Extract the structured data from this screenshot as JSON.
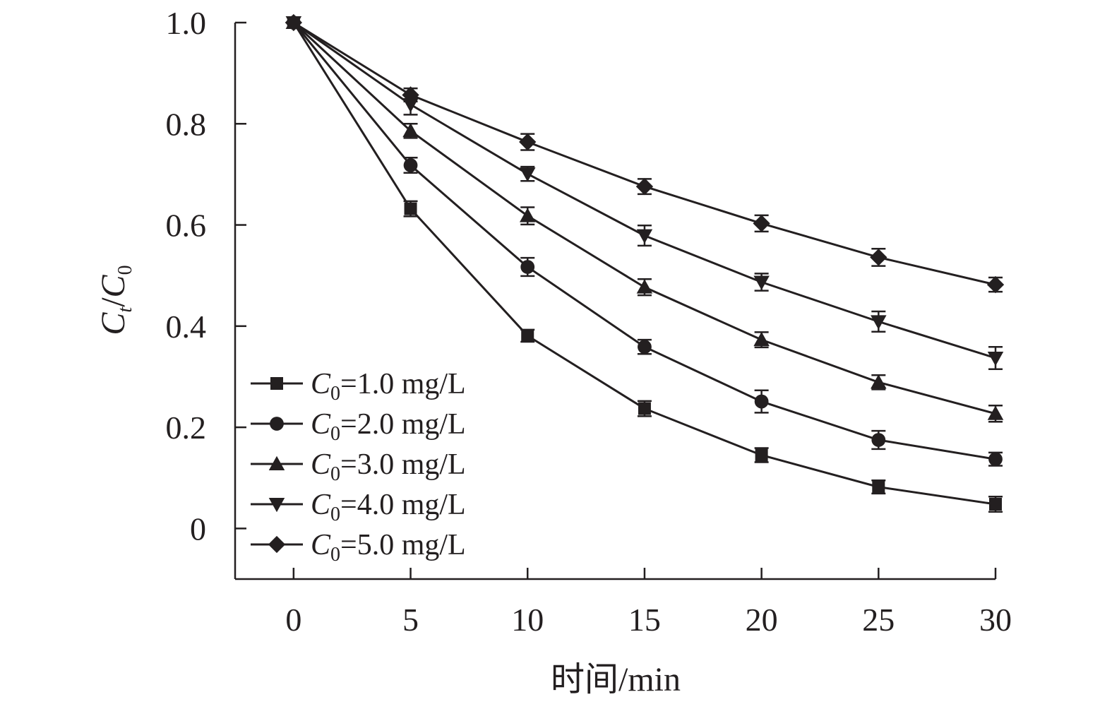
{
  "chart_data": {
    "type": "line",
    "title": "",
    "xlabel": "时间/min",
    "ylabel": {
      "main": "C",
      "sub_t": "t",
      "slash": "/",
      "main2": "C",
      "sub_0": "0"
    },
    "x": [
      0,
      5,
      10,
      15,
      20,
      25,
      30
    ],
    "xlim": [
      -2.5,
      30
    ],
    "ylim": [
      -0.1,
      1.0
    ],
    "xticks": [
      0,
      5,
      10,
      15,
      20,
      25,
      30
    ],
    "xtick_labels": [
      "0",
      "5",
      "10",
      "15",
      "20",
      "25",
      "30"
    ],
    "yticks": [
      0,
      0.2,
      0.4,
      0.6,
      0.8,
      1.0
    ],
    "ytick_labels": [
      "0",
      "0.2",
      "0.4",
      "0.6",
      "0.8",
      "1.0"
    ],
    "grid": false,
    "legend_position": "bottom-left",
    "color": "#231f20",
    "series": [
      {
        "name": "C0=1.0 mg/L",
        "label_main": "C",
        "label_sub": "0",
        "label_rest": "=1.0 mg/L",
        "marker": "square",
        "values": [
          1.0,
          0.632,
          0.381,
          0.237,
          0.145,
          0.082,
          0.048
        ],
        "errors": [
          0,
          0.015,
          0.012,
          0.015,
          0.014,
          0.013,
          0.015
        ]
      },
      {
        "name": "C0=2.0 mg/L",
        "label_main": "C",
        "label_sub": "0",
        "label_rest": "=2.0 mg/L",
        "marker": "circle",
        "values": [
          1.0,
          0.718,
          0.517,
          0.359,
          0.251,
          0.175,
          0.137
        ],
        "errors": [
          0,
          0.015,
          0.018,
          0.014,
          0.022,
          0.018,
          0.013
        ]
      },
      {
        "name": "C0=3.0 mg/L",
        "label_main": "C",
        "label_sub": "0",
        "label_rest": "=3.0 mg/L",
        "marker": "triangle-up",
        "values": [
          1.0,
          0.786,
          0.618,
          0.477,
          0.373,
          0.289,
          0.227
        ],
        "errors": [
          0,
          0.014,
          0.017,
          0.016,
          0.015,
          0.014,
          0.016
        ]
      },
      {
        "name": "C0=4.0 mg/L",
        "label_main": "C",
        "label_sub": "0",
        "label_rest": "=4.0 mg/L",
        "marker": "triangle-down",
        "values": [
          1.0,
          0.838,
          0.701,
          0.579,
          0.487,
          0.409,
          0.337
        ],
        "errors": [
          0,
          0.02,
          0.014,
          0.02,
          0.017,
          0.02,
          0.022
        ]
      },
      {
        "name": "C0=5.0 mg/L",
        "label_main": "C",
        "label_sub": "0",
        "label_rest": "=5.0 mg/L",
        "marker": "diamond",
        "values": [
          1.0,
          0.857,
          0.764,
          0.676,
          0.603,
          0.536,
          0.482
        ],
        "errors": [
          0,
          0.013,
          0.016,
          0.015,
          0.016,
          0.017,
          0.014
        ]
      }
    ]
  }
}
